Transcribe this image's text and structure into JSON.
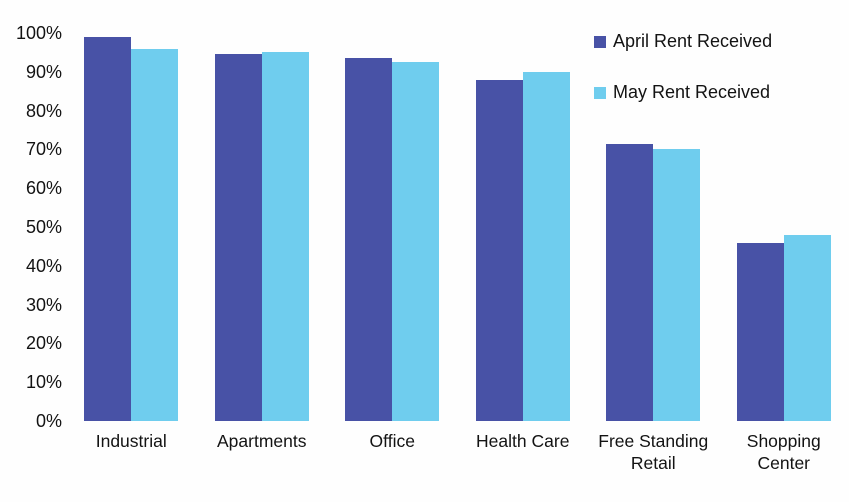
{
  "chart_data": {
    "type": "bar",
    "title": "",
    "xlabel": "",
    "ylabel": "",
    "categories": [
      "Industrial",
      "Apartments",
      "Office",
      "Health Care",
      "Free Standing Retail",
      "Shopping Center"
    ],
    "series": [
      {
        "name": "April Rent Received",
        "color": "#4852A6",
        "values": [
          99,
          94.5,
          93.5,
          88,
          71.5,
          46
        ]
      },
      {
        "name": "May Rent Received",
        "color": "#6FCDEE",
        "values": [
          96,
          95,
          92.5,
          90,
          70,
          48
        ]
      }
    ],
    "ylim": [
      0,
      100
    ],
    "ytick_step": 10,
    "ytick_labels": [
      "0%",
      "10%",
      "20%",
      "30%",
      "40%",
      "50%",
      "60%",
      "70%",
      "80%",
      "90%",
      "100%"
    ],
    "grid": false,
    "legend_position": "top-right",
    "axis_text_color": "#131313",
    "background_color": "#fefefe"
  }
}
